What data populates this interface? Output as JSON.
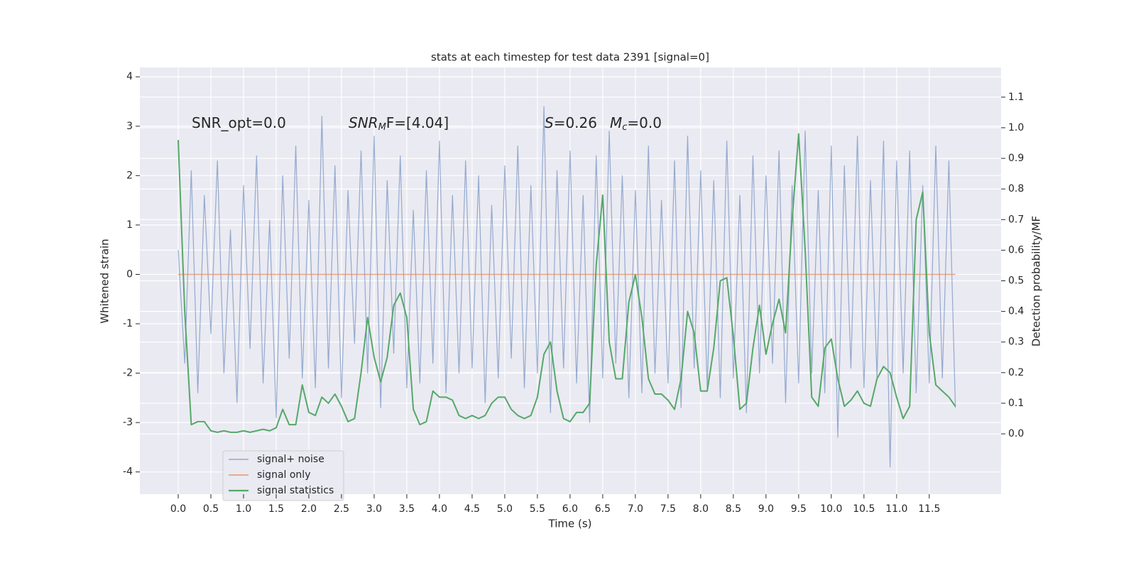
{
  "chart_data": {
    "type": "line",
    "title": "stats at each timestep for test data 2391 [signal=0]",
    "xlabel": "Time (s)",
    "ylabel": "Whitened strain",
    "y2label": "Detection probability/MF",
    "annotations": [
      [
        "SNR_opt=0.0"
      ],
      [
        "SNR",
        "M",
        "F=[4.04]"
      ],
      [
        "S",
        "=0.26"
      ],
      [
        "M",
        "c",
        "=0.0"
      ]
    ],
    "x": [
      0,
      0.1,
      0.2,
      0.3,
      0.4,
      0.5,
      0.6,
      0.7,
      0.8,
      0.9,
      1,
      1.1,
      1.2,
      1.3,
      1.4,
      1.5,
      1.6,
      1.7,
      1.8,
      1.9,
      2,
      2.1,
      2.2,
      2.3,
      2.4,
      2.5,
      2.6,
      2.7,
      2.8,
      2.9,
      3,
      3.1,
      3.2,
      3.3,
      3.4,
      3.5,
      3.6,
      3.7,
      3.8,
      3.9,
      4,
      4.1,
      4.2,
      4.3,
      4.4,
      4.5,
      4.6,
      4.7,
      4.8,
      4.9,
      5,
      5.1,
      5.2,
      5.3,
      5.4,
      5.5,
      5.6,
      5.7,
      5.8,
      5.9,
      6,
      6.1,
      6.2,
      6.3,
      6.4,
      6.5,
      6.6,
      6.7,
      6.8,
      6.9,
      7,
      7.1,
      7.2,
      7.3,
      7.4,
      7.5,
      7.6,
      7.7,
      7.8,
      7.9,
      8,
      8.1,
      8.2,
      8.3,
      8.4,
      8.5,
      8.6,
      8.7,
      8.8,
      8.9,
      9,
      9.1,
      9.2,
      9.3,
      9.4,
      9.5,
      9.6,
      9.7,
      9.8,
      9.9,
      10,
      10.1,
      10.2,
      10.3,
      10.4,
      10.5,
      10.6,
      10.7,
      10.8,
      10.9,
      11,
      11.1,
      11.2,
      11.3,
      11.4,
      11.5,
      11.6,
      11.7,
      11.8,
      11.9
    ],
    "series": [
      {
        "name": "signal+ noise",
        "color": "#4c72b0",
        "values": [
          0.5,
          -1.8,
          2.1,
          -2.4,
          1.6,
          -1.2,
          2.3,
          -2.0,
          0.9,
          -2.6,
          1.8,
          -1.5,
          2.4,
          -2.2,
          1.1,
          -2.9,
          2.0,
          -1.7,
          2.6,
          -2.1,
          1.5,
          -2.3,
          3.2,
          -1.9,
          2.2,
          -2.5,
          1.7,
          -1.4,
          2.5,
          -2.0,
          2.8,
          -2.7,
          1.9,
          -1.6,
          2.4,
          -2.3,
          1.3,
          -2.2,
          2.1,
          -1.8,
          2.7,
          -2.4,
          1.6,
          -2.0,
          2.3,
          -1.9,
          2.0,
          -2.6,
          1.4,
          -2.1,
          2.2,
          -1.7,
          2.6,
          -2.3,
          1.8,
          -2.0,
          3.4,
          -2.8,
          2.1,
          -1.9,
          2.5,
          -2.2,
          1.6,
          -3.0,
          2.4,
          -2.1,
          2.9,
          -1.8,
          2.0,
          -2.5,
          1.7,
          -2.4,
          2.6,
          -2.0,
          1.5,
          -2.2,
          2.3,
          -2.7,
          2.8,
          -1.9,
          2.1,
          -2.3,
          1.9,
          -2.5,
          2.7,
          -2.1,
          1.6,
          -2.8,
          2.4,
          -2.0,
          2.0,
          -1.8,
          2.5,
          -2.6,
          1.8,
          -2.2,
          2.9,
          -2.0,
          1.7,
          -2.4,
          2.6,
          -3.3,
          2.2,
          -1.9,
          2.8,
          -2.3,
          1.9,
          -2.1,
          2.7,
          -3.9,
          2.3,
          -2.0,
          2.5,
          -2.4,
          1.8,
          -2.2,
          2.6,
          -2.1,
          2.3,
          -2.7
        ]
      },
      {
        "name": "signal only",
        "color": "#dd8452",
        "values": [
          0,
          0,
          0,
          0,
          0,
          0,
          0,
          0,
          0,
          0,
          0,
          0,
          0,
          0,
          0,
          0,
          0,
          0,
          0,
          0,
          0,
          0,
          0,
          0,
          0,
          0,
          0,
          0,
          0,
          0,
          0,
          0,
          0,
          0,
          0,
          0,
          0,
          0,
          0,
          0,
          0,
          0,
          0,
          0,
          0,
          0,
          0,
          0,
          0,
          0,
          0,
          0,
          0,
          0,
          0,
          0,
          0,
          0,
          0,
          0,
          0,
          0,
          0,
          0,
          0,
          0,
          0,
          0,
          0,
          0,
          0,
          0,
          0,
          0,
          0,
          0,
          0,
          0,
          0,
          0,
          0,
          0,
          0,
          0,
          0,
          0,
          0,
          0,
          0,
          0,
          0,
          0,
          0,
          0,
          0,
          0,
          0,
          0,
          0,
          0,
          0,
          0,
          0,
          0,
          0,
          0,
          0,
          0,
          0,
          0,
          0,
          0,
          0,
          0,
          0,
          0,
          0,
          0,
          0,
          0
        ]
      },
      {
        "name": "signal statistics",
        "color": "#55a868",
        "axis": "y2",
        "values": [
          0.96,
          0.4,
          0.03,
          0.04,
          0.04,
          0.01,
          0.005,
          0.01,
          0.005,
          0.005,
          0.01,
          0.005,
          0.01,
          0.015,
          0.01,
          0.02,
          0.08,
          0.03,
          0.03,
          0.16,
          0.07,
          0.06,
          0.12,
          0.1,
          0.13,
          0.09,
          0.04,
          0.05,
          0.2,
          0.38,
          0.25,
          0.17,
          0.25,
          0.42,
          0.46,
          0.38,
          0.08,
          0.03,
          0.04,
          0.14,
          0.12,
          0.12,
          0.11,
          0.06,
          0.05,
          0.06,
          0.05,
          0.06,
          0.1,
          0.12,
          0.12,
          0.08,
          0.06,
          0.05,
          0.06,
          0.12,
          0.26,
          0.3,
          0.14,
          0.05,
          0.04,
          0.07,
          0.07,
          0.1,
          0.55,
          0.78,
          0.3,
          0.18,
          0.18,
          0.43,
          0.52,
          0.38,
          0.18,
          0.13,
          0.13,
          0.11,
          0.08,
          0.18,
          0.4,
          0.33,
          0.14,
          0.14,
          0.28,
          0.5,
          0.51,
          0.32,
          0.08,
          0.1,
          0.28,
          0.42,
          0.26,
          0.36,
          0.44,
          0.33,
          0.7,
          0.98,
          0.6,
          0.12,
          0.09,
          0.28,
          0.31,
          0.18,
          0.09,
          0.11,
          0.14,
          0.1,
          0.09,
          0.18,
          0.22,
          0.2,
          0.12,
          0.05,
          0.09,
          0.7,
          0.79,
          0.33,
          0.16,
          0.14,
          0.12,
          0.09
        ]
      }
    ],
    "xlim": [
      -0.587,
      12.6
    ],
    "ylim": [
      -4.45,
      4.19
    ],
    "y2lim": [
      -0.197,
      1.197
    ],
    "xticks": [
      {
        "value": 0,
        "label": "0.0"
      },
      0.5,
      {
        "value": 1,
        "label": "1.0"
      },
      1.5,
      {
        "value": 2,
        "label": "2.0"
      },
      2.5,
      {
        "value": 3,
        "label": "3.0"
      },
      3.5,
      {
        "value": 4,
        "label": "4.0"
      },
      4.5,
      {
        "value": 5,
        "label": "5.0"
      },
      5.5,
      {
        "value": 6,
        "label": "6.0"
      },
      6.5,
      {
        "value": 7,
        "label": "7.0"
      },
      7.5,
      {
        "value": 8,
        "label": "8.0"
      },
      8.5,
      {
        "value": 9,
        "label": "9.0"
      },
      9.5,
      {
        "value": 10,
        "label": "10.0"
      },
      10.5,
      {
        "value": 11,
        "label": "11.0"
      },
      11.5
    ],
    "yticks": [
      -4,
      -3,
      -2,
      -1,
      0,
      1,
      2,
      3,
      4
    ],
    "y2ticks": [
      {
        "value": 0,
        "label": "0.0"
      },
      0.1,
      0.2,
      0.3,
      0.4,
      0.5,
      0.6,
      0.7,
      0.8,
      0.9,
      {
        "value": 1,
        "label": "1.0"
      },
      1.1
    ],
    "grid": true,
    "legend": "lower left"
  }
}
